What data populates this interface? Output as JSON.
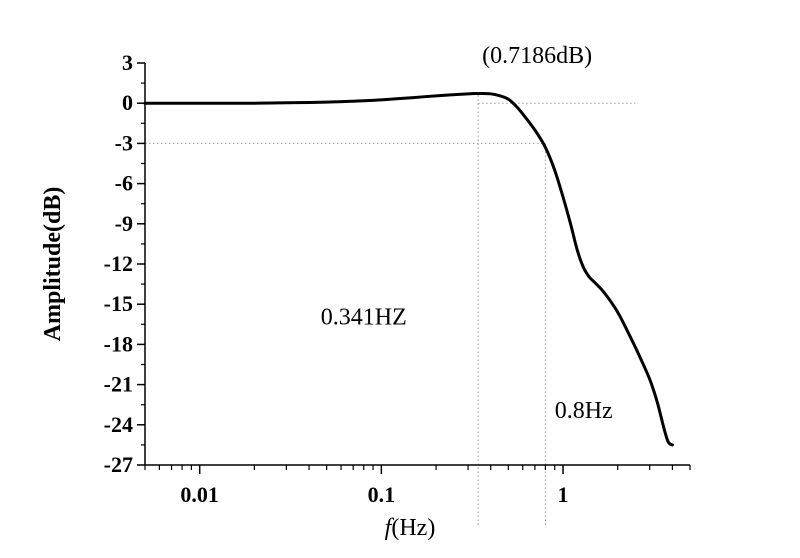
{
  "chart_data": {
    "type": "line",
    "xscale": "log",
    "xlim": [
      0.005,
      5
    ],
    "ylim": [
      -27,
      3
    ],
    "xlabel_italic": "f",
    "xlabel_rest": "(Hz)",
    "ylabel": "Amplitude(dB)",
    "xticks": [
      {
        "value": 0.01,
        "label": "0.01"
      },
      {
        "value": 0.1,
        "label": "0.1"
      },
      {
        "value": 1,
        "label": "1"
      }
    ],
    "yticks": [
      {
        "value": 3,
        "label": "3"
      },
      {
        "value": 0,
        "label": "0"
      },
      {
        "value": -3,
        "label": "-3"
      },
      {
        "value": -6,
        "label": "-6"
      },
      {
        "value": -9,
        "label": "-9"
      },
      {
        "value": -12,
        "label": "-12"
      },
      {
        "value": -15,
        "label": "-15"
      },
      {
        "value": -18,
        "label": "-18"
      },
      {
        "value": -21,
        "label": "-21"
      },
      {
        "value": -24,
        "label": "-24"
      },
      {
        "value": -27,
        "label": "-27"
      }
    ],
    "series": [
      {
        "x": [
          0.005,
          0.01,
          0.02,
          0.03,
          0.05,
          0.08,
          0.1,
          0.15,
          0.2,
          0.3,
          0.341,
          0.4,
          0.45,
          0.5,
          0.55,
          0.6,
          0.7,
          0.8,
          0.9,
          1.0,
          1.1,
          1.2,
          1.3,
          1.4,
          1.5,
          1.7,
          2.0,
          2.3,
          2.6,
          3.0,
          3.3,
          3.6,
          3.8,
          4.0
        ],
        "y": [
          0,
          0,
          0,
          0.03,
          0.08,
          0.18,
          0.25,
          0.42,
          0.55,
          0.7,
          0.7186,
          0.7,
          0.55,
          0.3,
          -0.2,
          -0.8,
          -2.0,
          -3.3,
          -5.0,
          -7.0,
          -9.0,
          -11.0,
          -12.3,
          -13.0,
          -13.4,
          -14.2,
          -15.6,
          -17.2,
          -18.7,
          -20.6,
          -22.3,
          -24.3,
          -25.3,
          -25.5
        ]
      }
    ],
    "guides": [
      {
        "type": "hline",
        "y": 0,
        "x_from": 0.341,
        "x_to": 2.5
      },
      {
        "type": "hline",
        "y": -3,
        "x_from": 0.005,
        "x_to": 0.8
      },
      {
        "type": "vline",
        "x": 0.341,
        "y_from": -27,
        "y_to": 0.7186
      },
      {
        "type": "vline",
        "x": 0.8,
        "y_from": -27,
        "y_to": -3
      }
    ],
    "annotations": [
      {
        "id": "peak",
        "text": "(0.7186dB)",
        "x": 0.72,
        "y": 3.0
      },
      {
        "id": "f341",
        "text": "0.341HZ",
        "x": 0.08,
        "y": -16.5
      },
      {
        "id": "f08",
        "text": "0.8Hz",
        "x": 1.3,
        "y": -23.5
      }
    ]
  }
}
